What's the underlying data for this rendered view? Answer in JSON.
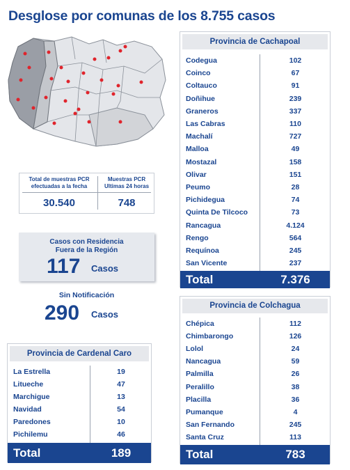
{
  "title": "Desglose por comunas de los 8.755 casos",
  "pcr": {
    "headers": [
      "Total de muestras PCR efectuadas a la fecha",
      "Muestras PCR Ultimas 24 horas"
    ],
    "values": [
      "30.540",
      "748"
    ]
  },
  "fuera": {
    "label": "Casos con Residencia Fuera de la Región",
    "value": "117",
    "unit": "Casos"
  },
  "sin": {
    "label": "Sin Notificación",
    "value": "290",
    "unit": "Casos"
  },
  "tables": [
    {
      "title": "Provincia de Cachapoal",
      "rows": [
        [
          "Codegua",
          "102"
        ],
        [
          "Coinco",
          "67"
        ],
        [
          "Coltauco",
          "91"
        ],
        [
          "Doñihue",
          "239"
        ],
        [
          "Graneros",
          "337"
        ],
        [
          "Las Cabras",
          "110"
        ],
        [
          "Machalí",
          "727"
        ],
        [
          "Malloa",
          "49"
        ],
        [
          "Mostazal",
          "158"
        ],
        [
          "Olivar",
          "151"
        ],
        [
          "Peumo",
          "28"
        ],
        [
          "Pichidegua",
          "74"
        ],
        [
          "Quinta De Tilcoco",
          "73"
        ],
        [
          "Rancagua",
          "4.124"
        ],
        [
          "Rengo",
          "564"
        ],
        [
          "Requínoa",
          "245"
        ],
        [
          "San Vicente",
          "237"
        ]
      ],
      "total": [
        "Total",
        "7.376"
      ]
    },
    {
      "title": "Provincia de Colchagua",
      "rows": [
        [
          "Chépica",
          "112"
        ],
        [
          "Chimbarongo",
          "126"
        ],
        [
          "Lolol",
          "24"
        ],
        [
          "Nancagua",
          "59"
        ],
        [
          "Palmilla",
          "26"
        ],
        [
          "Peralillo",
          "38"
        ],
        [
          "Placilla",
          "36"
        ],
        [
          "Pumanque",
          "4"
        ],
        [
          "San Fernando",
          "245"
        ],
        [
          "Santa Cruz",
          "113"
        ]
      ],
      "total": [
        "Total",
        "783"
      ]
    },
    {
      "title": "Provincia de Cardenal Caro",
      "rows": [
        [
          "La Estrella",
          "19"
        ],
        [
          "Litueche",
          "47"
        ],
        [
          "Marchigue",
          "13"
        ],
        [
          "Navidad",
          "54"
        ],
        [
          "Paredones",
          "10"
        ],
        [
          "Pichilemu",
          "46"
        ]
      ],
      "total": [
        "Total",
        "189"
      ]
    }
  ]
}
